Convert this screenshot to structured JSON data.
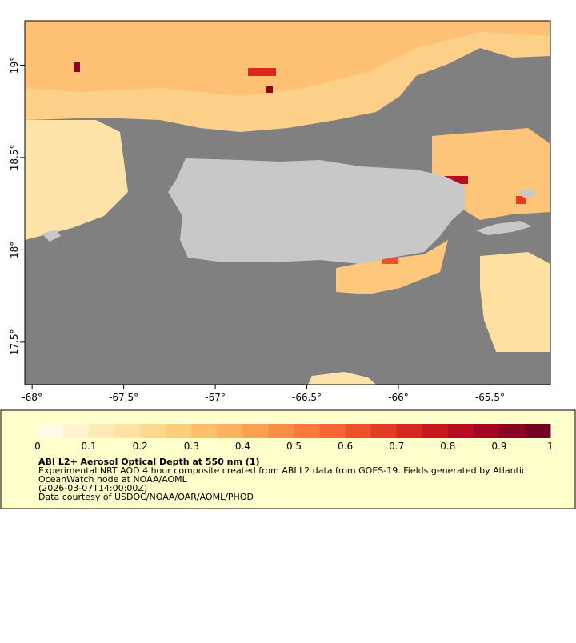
{
  "map": {
    "xlim": [
      -68.04,
      -65.17
    ],
    "ylim": [
      17.27,
      19.24
    ],
    "xticks": [
      {
        "value": -68,
        "label": "-68°"
      },
      {
        "value": -67.5,
        "label": "-67.5°"
      },
      {
        "value": -67,
        "label": "-67°"
      },
      {
        "value": -66.5,
        "label": "-66.5°"
      },
      {
        "value": -66,
        "label": "-66°"
      },
      {
        "value": -65.5,
        "label": "-65.5°"
      }
    ],
    "yticks": [
      {
        "value": 17.5,
        "label": "17.5°"
      },
      {
        "value": 18,
        "label": "18°"
      },
      {
        "value": 18.5,
        "label": "18.5°"
      },
      {
        "value": 19,
        "label": "19°"
      }
    ],
    "colorbar": {
      "lim": [
        0,
        1
      ],
      "ticks": [
        0,
        0.1,
        0.2,
        0.3,
        0.4,
        0.5,
        0.6,
        0.7,
        0.8,
        0.9,
        1
      ],
      "colors": [
        "#fffbe6",
        "#fff3cf",
        "#ffeab8",
        "#fee2a2",
        "#fed88c",
        "#fdcd7a",
        "#fdc06a",
        "#fdb15c",
        "#fca04f",
        "#fc8d45",
        "#fb7a3c",
        "#f66533",
        "#ee502b",
        "#e43b25",
        "#d82720",
        "#c9171f",
        "#b70c22",
        "#a20624",
        "#8c0424",
        "#720221"
      ]
    },
    "legend": {
      "title": "ABI L2+ Aerosol Optical Depth at 550 nm (1)",
      "lines": [
        "Experimental NRT AOD 4 hour composite created from ABI L2 data from GOES-19. Fields generated by Atlantic",
        "OceanWatch node at NOAA/AOML",
        "(2026-03-07T14:00:00Z)",
        "Data courtesy of USDOC/NOAA/OAR/AOML/PHOD"
      ]
    }
  }
}
